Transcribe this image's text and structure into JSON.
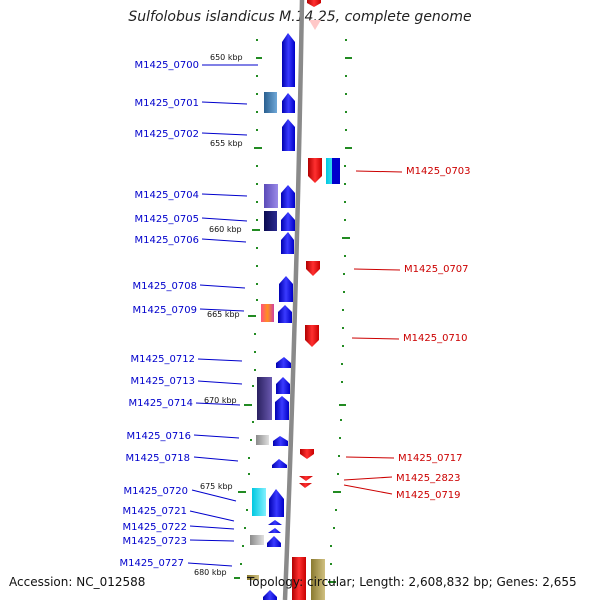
{
  "title": "Sulfolobus islandicus M.14.25, complete genome",
  "accession": "Accession: NC_012588",
  "topology": "Topology: circular; Length: 2,608,832 bp; Genes: 2,655",
  "colors": {
    "forward": "#0000ee",
    "reverse": "#ee0000",
    "backbone": "#8a8a8a",
    "tick": "#228b22"
  },
  "scale_labels": [
    "650 kbp",
    "655 kbp",
    "660 kbp",
    "665 kbp",
    "670 kbp",
    "675 kbp",
    "680 kbp"
  ],
  "forward_genes": [
    "M1425_0700",
    "M1425_0701",
    "M1425_0702",
    "M1425_0704",
    "M1425_0705",
    "M1425_0706",
    "M1425_0708",
    "M1425_0709",
    "M1425_0712",
    "M1425_0713",
    "M1425_0714",
    "M1425_0716",
    "M1425_0718",
    "M1425_0720",
    "M1425_0721",
    "M1425_0722",
    "M1425_0723",
    "M1425_0727"
  ],
  "reverse_genes": [
    "M1425_0703",
    "M1425_0707",
    "M1425_0710",
    "M1425_0717",
    "M1425_2823",
    "M1425_0719"
  ]
}
